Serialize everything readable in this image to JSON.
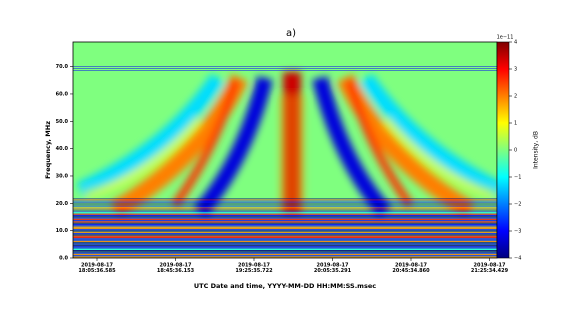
{
  "chart_data": {
    "type": "heatmap",
    "title": "a)",
    "xlabel": "UTC Date and time, YYYY-MM-DD HH:MM:SS.msec",
    "ylabel": "Frequency, MHz",
    "x_tick_labels": [
      [
        "2019-08-17",
        "18:05:36.585"
      ],
      [
        "2019-08-17",
        "18:45:36.153"
      ],
      [
        "2019-08-17",
        "19:25:35.722"
      ],
      [
        "2019-08-17",
        "20:05:35.291"
      ],
      [
        "2019-08-17",
        "20:45:34.860"
      ],
      [
        "2019-08-17",
        "21:25:34.429"
      ]
    ],
    "ylim": [
      0,
      79
    ],
    "yticks": [
      {
        "value": 0,
        "label": "0.0"
      },
      {
        "value": 10,
        "label": "10.0"
      },
      {
        "value": 20,
        "label": "20.0"
      },
      {
        "value": 30,
        "label": "30.0"
      },
      {
        "value": 40,
        "label": "40.0"
      },
      {
        "value": 50,
        "label": "50.0"
      },
      {
        "value": 60,
        "label": "60.0"
      },
      {
        "value": 70,
        "label": "70.0"
      }
    ],
    "colorbar": {
      "label": "Intensity, dB",
      "offset_label": "1e−11",
      "lim": [
        -4,
        4
      ],
      "ticks": [
        {
          "value": -4,
          "label": "−4"
        },
        {
          "value": -3,
          "label": "−3"
        },
        {
          "value": -2,
          "label": "−2"
        },
        {
          "value": -1,
          "label": "−1"
        },
        0,
        1,
        2,
        3,
        4
      ],
      "colors": [
        "#00007f",
        "#0000ff",
        "#007fff",
        "#00ffff",
        "#7fff7f",
        "#ffff00",
        "#ff7f00",
        "#ff0000",
        "#7f0000"
      ]
    }
  }
}
